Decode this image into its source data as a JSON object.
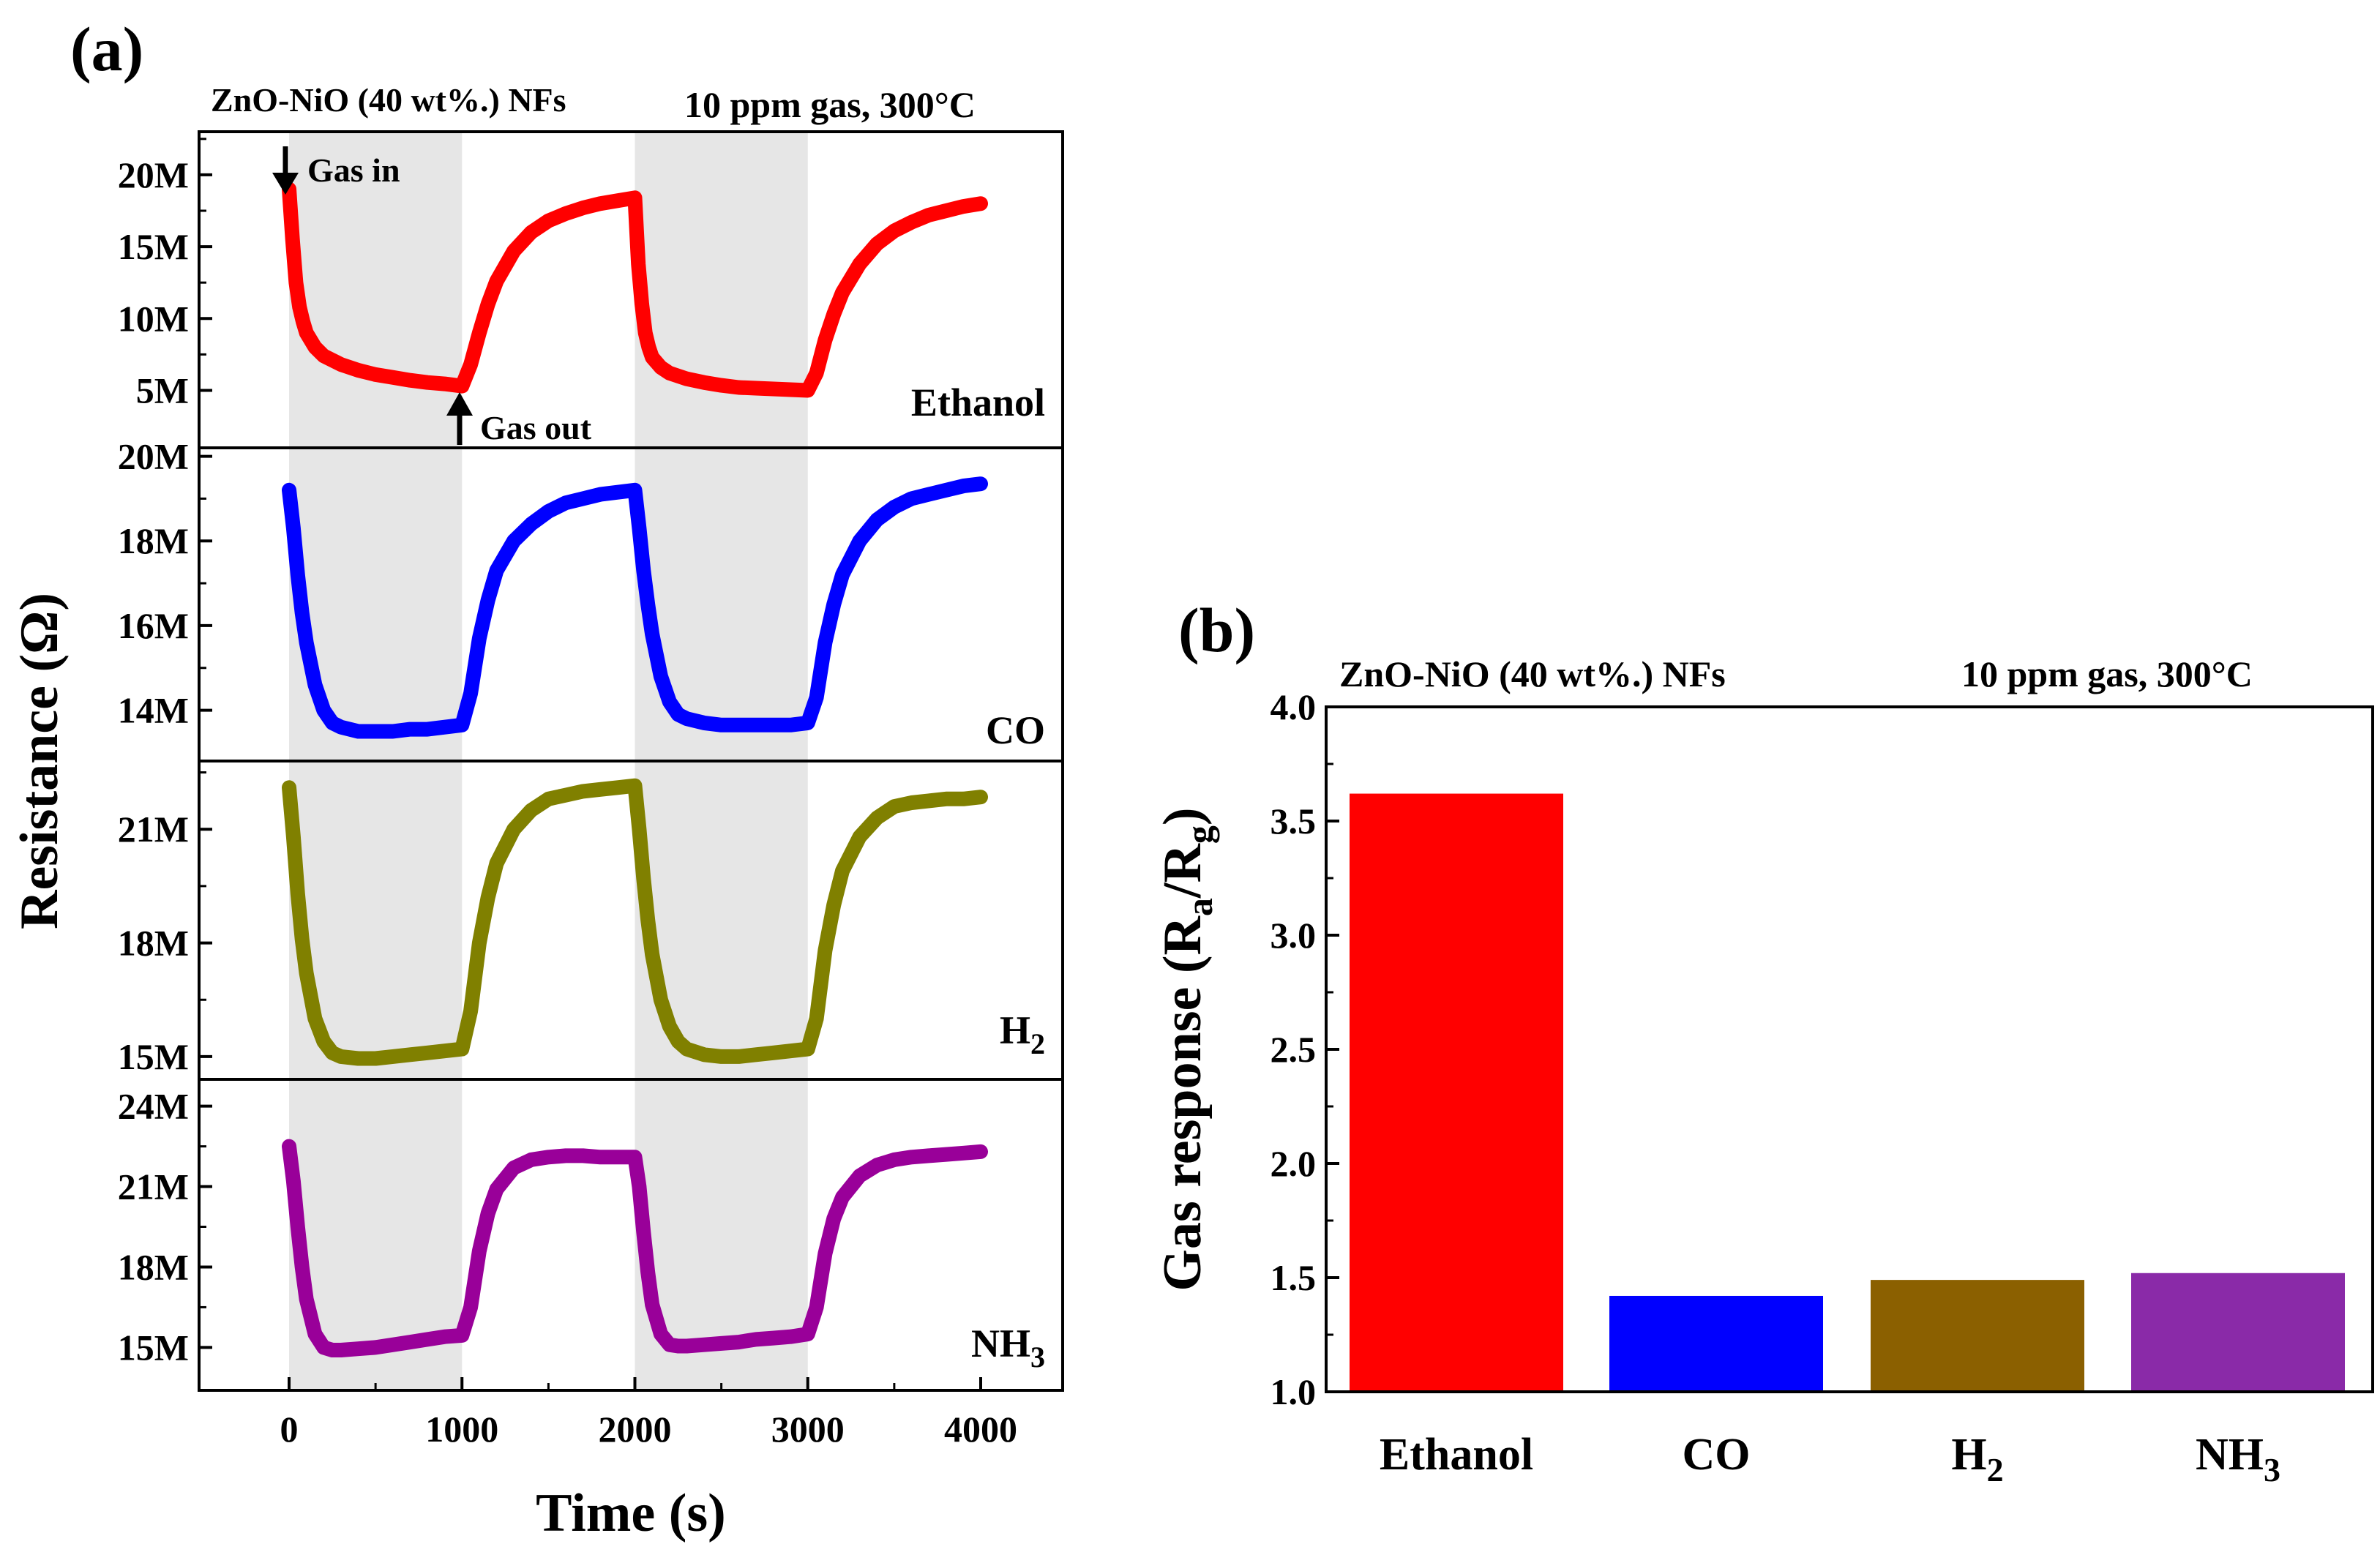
{
  "figure": {
    "panel_a_label": "(a)",
    "panel_b_label": "(b)"
  },
  "panel_a": {
    "sample_label": "ZnO-NiO (40 wt%.) NFs",
    "condition_label": "10 ppm gas, 300°C",
    "ylabel": "Resistance (Ω)",
    "xlabel": "Time (s)",
    "x_ticks": [
      "0",
      "1000",
      "2000",
      "3000",
      "4000"
    ],
    "annotation_gas_in": "Gas in",
    "annotation_gas_out": "Gas out",
    "exposure_bands_s": [
      [
        0,
        1000
      ],
      [
        2000,
        3000
      ]
    ]
  },
  "panel_b": {
    "sample_label": "ZnO-NiO (40  wt%.) NFs",
    "condition_label": "10 ppm gas, 300°C",
    "ylabel": "Gas response (Ra/Rg)",
    "ylabel_main": "Gas response (R",
    "ylabel_sub_a": "a",
    "ylabel_mid": "/R",
    "ylabel_sub_g": "g",
    "ylabel_close": ")",
    "y_ticks": [
      "1.0",
      "1.5",
      "2.0",
      "2.5",
      "3.0",
      "3.5",
      "4.0"
    ]
  },
  "colors": {
    "ethanol": "#ff0000",
    "co": "#0000ff",
    "h2": "#808000",
    "nh3": "#990099",
    "bar_ethanol": "#ff0000",
    "bar_co": "#0000ff",
    "bar_h2": "#8b6000",
    "bar_nh3": "#8a2aa8",
    "band": "#e6e6e6"
  },
  "chart_data": [
    {
      "type": "line",
      "title": "ZnO-NiO (40 wt%.) NFs, 10 ppm gas, 300°C",
      "xlabel": "Time (s)",
      "ylabel": "Resistance (Ω)",
      "xlim": [
        -500,
        4500
      ],
      "subplots": [
        {
          "gas": "Ethanol",
          "gas_main": "Ethanol",
          "gas_sub": "",
          "ylim": [
            1000000,
            23000000
          ],
          "y_ticks": [
            5000000,
            10000000,
            15000000,
            20000000
          ],
          "y_tick_labels": [
            "5M",
            "10M",
            "15M",
            "20M"
          ],
          "x": [
            0,
            20,
            40,
            60,
            80,
            100,
            150,
            200,
            300,
            400,
            500,
            600,
            700,
            800,
            900,
            1000,
            1050,
            1100,
            1150,
            1200,
            1300,
            1400,
            1500,
            1600,
            1700,
            1800,
            1900,
            2000,
            2020,
            2040,
            2060,
            2080,
            2100,
            2150,
            2200,
            2300,
            2400,
            2500,
            2600,
            2700,
            2800,
            2900,
            3000,
            3050,
            3100,
            3150,
            3200,
            3300,
            3400,
            3500,
            3600,
            3700,
            3800,
            3900,
            4000
          ],
          "y": [
            19000000,
            15500000,
            12500000,
            10800000,
            9800000,
            9000000,
            8000000,
            7400000,
            6800000,
            6400000,
            6100000,
            5900000,
            5700000,
            5550000,
            5450000,
            5300000,
            6800000,
            9000000,
            11000000,
            12600000,
            14700000,
            16000000,
            16800000,
            17300000,
            17700000,
            18000000,
            18200000,
            18400000,
            13800000,
            11000000,
            9000000,
            8000000,
            7300000,
            6600000,
            6200000,
            5800000,
            5550000,
            5350000,
            5200000,
            5150000,
            5100000,
            5050000,
            5000000,
            6200000,
            8500000,
            10300000,
            11800000,
            13800000,
            15200000,
            16100000,
            16700000,
            17200000,
            17500000,
            17800000,
            18000000
          ]
        },
        {
          "gas": "CO",
          "gas_main": "CO",
          "gas_sub": "",
          "ylim": [
            12800000,
            20200000
          ],
          "y_ticks": [
            14000000,
            16000000,
            18000000,
            20000000
          ],
          "y_tick_labels": [
            "14M",
            "16M",
            "18M",
            "20M"
          ],
          "x": [
            0,
            25,
            50,
            75,
            100,
            150,
            200,
            250,
            300,
            400,
            500,
            600,
            700,
            800,
            900,
            1000,
            1050,
            1100,
            1150,
            1200,
            1300,
            1400,
            1500,
            1600,
            1700,
            1800,
            1900,
            2000,
            2025,
            2050,
            2075,
            2100,
            2150,
            2200,
            2250,
            2300,
            2400,
            2500,
            2600,
            2700,
            2800,
            2900,
            3000,
            3050,
            3100,
            3150,
            3200,
            3300,
            3400,
            3500,
            3600,
            3700,
            3800,
            3900,
            4000
          ],
          "y": [
            19200000,
            18300000,
            17200000,
            16300000,
            15600000,
            14600000,
            14000000,
            13700000,
            13600000,
            13500000,
            13500000,
            13500000,
            13550000,
            13550000,
            13600000,
            13650000,
            14400000,
            15700000,
            16600000,
            17300000,
            18000000,
            18400000,
            18700000,
            18900000,
            19000000,
            19100000,
            19150000,
            19200000,
            18300000,
            17300000,
            16500000,
            15800000,
            14800000,
            14200000,
            13900000,
            13800000,
            13700000,
            13650000,
            13650000,
            13650000,
            13650000,
            13650000,
            13700000,
            14300000,
            15600000,
            16500000,
            17200000,
            18000000,
            18500000,
            18800000,
            19000000,
            19100000,
            19200000,
            19300000,
            19350000
          ]
        },
        {
          "gas": "H2",
          "gas_main": "H",
          "gas_sub": "2",
          "ylim": [
            14400000,
            22800000
          ],
          "y_ticks": [
            15000000,
            18000000,
            21000000
          ],
          "y_tick_labels": [
            "15M",
            "18M",
            "21M"
          ],
          "x": [
            0,
            25,
            50,
            75,
            100,
            150,
            200,
            250,
            300,
            400,
            500,
            600,
            700,
            800,
            900,
            1000,
            1050,
            1100,
            1150,
            1200,
            1300,
            1400,
            1500,
            1600,
            1700,
            1800,
            1900,
            2000,
            2025,
            2050,
            2075,
            2100,
            2150,
            2200,
            2250,
            2300,
            2400,
            2500,
            2600,
            2700,
            2800,
            2900,
            3000,
            3050,
            3100,
            3150,
            3200,
            3300,
            3400,
            3500,
            3600,
            3700,
            3800,
            3900,
            4000
          ],
          "y": [
            22100000,
            20800000,
            19300000,
            18100000,
            17200000,
            16000000,
            15400000,
            15100000,
            15000000,
            14950000,
            14950000,
            15000000,
            15050000,
            15100000,
            15150000,
            15200000,
            16200000,
            18000000,
            19200000,
            20100000,
            21000000,
            21500000,
            21800000,
            21900000,
            22000000,
            22050000,
            22100000,
            22150000,
            21000000,
            19700000,
            18600000,
            17700000,
            16500000,
            15800000,
            15400000,
            15200000,
            15050000,
            15000000,
            15000000,
            15050000,
            15100000,
            15150000,
            15200000,
            16000000,
            17800000,
            19000000,
            19900000,
            20800000,
            21300000,
            21600000,
            21700000,
            21750000,
            21800000,
            21800000,
            21850000
          ]
        },
        {
          "gas": "NH3",
          "gas_main": "NH",
          "gas_sub": "3",
          "ylim": [
            13400000,
            25000000
          ],
          "y_ticks": [
            15000000,
            18000000,
            21000000,
            24000000
          ],
          "y_tick_labels": [
            "15M",
            "18M",
            "21M",
            "24M"
          ],
          "x": [
            0,
            25,
            50,
            75,
            100,
            150,
            200,
            250,
            300,
            400,
            500,
            600,
            700,
            800,
            900,
            1000,
            1050,
            1100,
            1150,
            1200,
            1300,
            1400,
            1500,
            1600,
            1700,
            1800,
            1900,
            2000,
            2025,
            2050,
            2075,
            2100,
            2150,
            2200,
            2250,
            2300,
            2400,
            2500,
            2600,
            2700,
            2800,
            2900,
            3000,
            3050,
            3100,
            3150,
            3200,
            3300,
            3400,
            3500,
            3600,
            3700,
            3800,
            3900,
            4000
          ],
          "y": [
            22500000,
            21200000,
            19500000,
            18000000,
            16800000,
            15500000,
            15000000,
            14900000,
            14900000,
            14950000,
            15000000,
            15100000,
            15200000,
            15300000,
            15400000,
            15450000,
            16500000,
            18600000,
            20000000,
            20900000,
            21700000,
            22000000,
            22100000,
            22150000,
            22150000,
            22100000,
            22100000,
            22100000,
            21000000,
            19300000,
            17800000,
            16600000,
            15500000,
            15100000,
            15050000,
            15050000,
            15100000,
            15150000,
            15200000,
            15300000,
            15350000,
            15400000,
            15500000,
            16500000,
            18500000,
            19800000,
            20600000,
            21400000,
            21800000,
            22000000,
            22100000,
            22150000,
            22200000,
            22250000,
            22300000
          ]
        }
      ]
    },
    {
      "type": "bar",
      "title": "ZnO-NiO (40  wt%.) NFs, 10 ppm gas, 300°C",
      "xlabel": "",
      "ylabel": "Gas response (Ra/Rg)",
      "categories": [
        "Ethanol",
        "CO",
        "H2",
        "NH3"
      ],
      "category_labels": [
        {
          "main": "Ethanol",
          "sub": ""
        },
        {
          "main": "CO",
          "sub": ""
        },
        {
          "main": "H",
          "sub": "2"
        },
        {
          "main": "NH",
          "sub": "3"
        }
      ],
      "values": [
        3.62,
        1.42,
        1.49,
        1.52
      ],
      "ylim": [
        1.0,
        4.0
      ],
      "y_ticks": [
        1.0,
        1.5,
        2.0,
        2.5,
        3.0,
        3.5,
        4.0
      ]
    }
  ]
}
